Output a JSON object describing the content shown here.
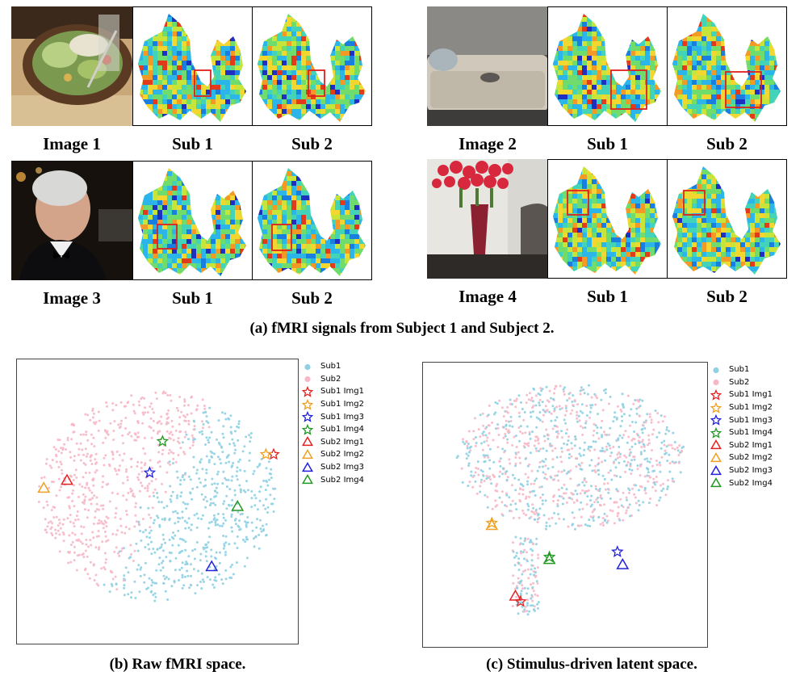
{
  "panel_a": {
    "groups": [
      {
        "image_label": "Image 1",
        "sub1_label": "Sub 1",
        "sub2_label": "Sub 2",
        "photo": "salad-plate"
      },
      {
        "image_label": "Image 2",
        "sub1_label": "Sub 1",
        "sub2_label": "Sub 2",
        "photo": "sofa-with-cat"
      },
      {
        "image_label": "Image 3",
        "sub1_label": "Sub 1",
        "sub2_label": "Sub 2",
        "photo": "man-in-tuxedo"
      },
      {
        "image_label": "Image 4",
        "sub1_label": "Sub 1",
        "sub2_label": "Sub 2",
        "photo": "roses-in-vase"
      }
    ],
    "caption": "(a) fMRI signals from Subject 1 and Subject 2."
  },
  "panel_b": {
    "caption": "(b) Raw fMRI space."
  },
  "panel_c": {
    "caption": "(c) Stimulus-driven latent space."
  },
  "legend": {
    "items": [
      {
        "label": "Sub1",
        "marker": "dot",
        "color": "#8fd0e3"
      },
      {
        "label": "Sub2",
        "marker": "dot",
        "color": "#f6b8c6"
      },
      {
        "label": "Sub1 Img1",
        "marker": "star",
        "color": "#e52222"
      },
      {
        "label": "Sub1 Img2",
        "marker": "star",
        "color": "#f0a020"
      },
      {
        "label": "Sub1 Img3",
        "marker": "star",
        "color": "#2222dd"
      },
      {
        "label": "Sub1 Img4",
        "marker": "star",
        "color": "#229922"
      },
      {
        "label": "Sub2 Img1",
        "marker": "triangle",
        "color": "#e52222"
      },
      {
        "label": "Sub2 Img2",
        "marker": "triangle",
        "color": "#f0a020"
      },
      {
        "label": "Sub2 Img3",
        "marker": "triangle",
        "color": "#2222dd"
      },
      {
        "label": "Sub2 Img4",
        "marker": "triangle",
        "color": "#229922"
      }
    ]
  },
  "chart_data": [
    {
      "type": "scatter",
      "title": "(b) Raw fMRI space.",
      "xlim": [
        0,
        100
      ],
      "ylim": [
        0,
        100
      ],
      "series": [
        {
          "name": "Sub1",
          "region": "upper-right cluster"
        },
        {
          "name": "Sub2",
          "region": "lower-left cluster"
        },
        {
          "name": "Sub1 Img1",
          "x": 95,
          "y": 68
        },
        {
          "name": "Sub1 Img2",
          "x": 92,
          "y": 68
        },
        {
          "name": "Sub1 Img3",
          "x": 47,
          "y": 61
        },
        {
          "name": "Sub1 Img4",
          "x": 52,
          "y": 73
        },
        {
          "name": "Sub2 Img1",
          "x": 15,
          "y": 58
        },
        {
          "name": "Sub2 Img2",
          "x": 6,
          "y": 55
        },
        {
          "name": "Sub2 Img3",
          "x": 71,
          "y": 25
        },
        {
          "name": "Sub2 Img4",
          "x": 81,
          "y": 48
        }
      ]
    },
    {
      "type": "scatter",
      "title": "(c) Stimulus-driven latent space.",
      "xlim": [
        0,
        100
      ],
      "ylim": [
        0,
        100
      ],
      "series": [
        {
          "name": "Sub1",
          "region": "mixed"
        },
        {
          "name": "Sub2",
          "region": "mixed"
        },
        {
          "name": "Sub1 Img1",
          "x": 33,
          "y": 13
        },
        {
          "name": "Sub1 Img2",
          "x": 22,
          "y": 43
        },
        {
          "name": "Sub1 Img3",
          "x": 70,
          "y": 32
        },
        {
          "name": "Sub1 Img4",
          "x": 44,
          "y": 30
        },
        {
          "name": "Sub2 Img1",
          "x": 31,
          "y": 15
        },
        {
          "name": "Sub2 Img2",
          "x": 22,
          "y": 42
        },
        {
          "name": "Sub2 Img3",
          "x": 72,
          "y": 27
        },
        {
          "name": "Sub2 Img4",
          "x": 44,
          "y": 29
        }
      ]
    }
  ]
}
